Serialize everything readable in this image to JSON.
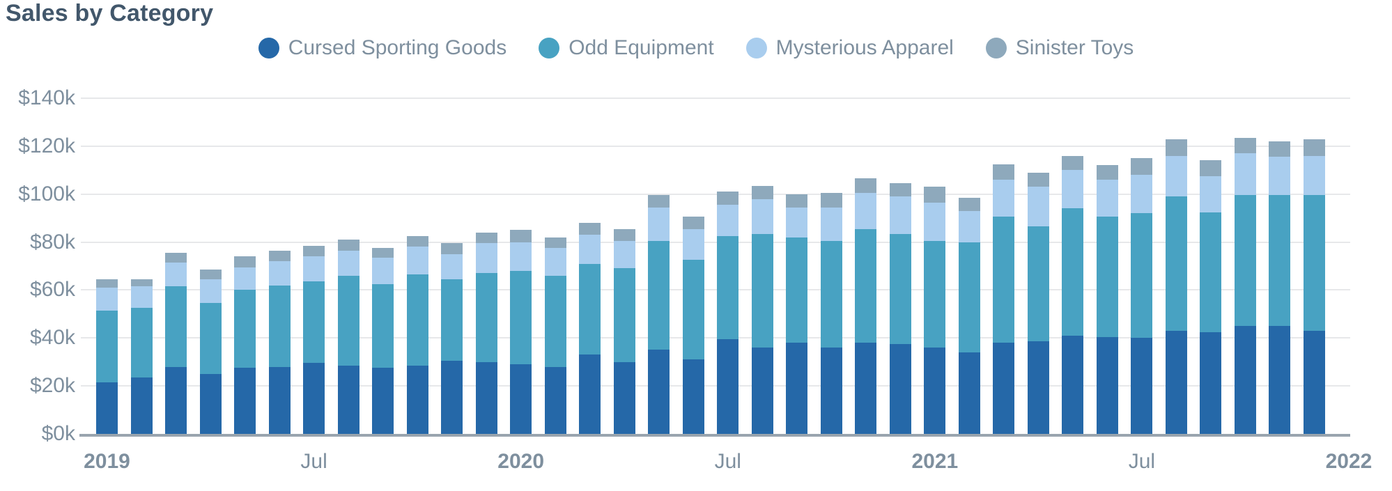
{
  "title": "Sales by Category",
  "colors": {
    "cursed_sporting_goods": "#2568A8",
    "odd_equipment": "#48A2C2",
    "mysterious_apparel": "#A9CDEE",
    "sinister_toys": "#8EA9BC",
    "title_text": "#42576B",
    "axis_text": "#7E8F9E",
    "gridline": "#E7E8EA",
    "axis_line": "#99A4AE"
  },
  "chart_data": {
    "type": "bar",
    "stacked": true,
    "title": "Sales by Category",
    "value_unit": "USD thousands",
    "grid": true,
    "legend_position": "top-center",
    "months": [
      "Jan 2019",
      "Feb 2019",
      "Mar 2019",
      "Apr 2019",
      "May 2019",
      "Jun 2019",
      "Jul 2019",
      "Aug 2019",
      "Sep 2019",
      "Oct 2019",
      "Nov 2019",
      "Dec 2019",
      "Jan 2020",
      "Feb 2020",
      "Mar 2020",
      "Apr 2020",
      "May 2020",
      "Jun 2020",
      "Jul 2020",
      "Aug 2020",
      "Sep 2020",
      "Oct 2020",
      "Nov 2020",
      "Dec 2020",
      "Jan 2021",
      "Feb 2021",
      "Mar 2021",
      "Apr 2021",
      "May 2021",
      "Jun 2021",
      "Jul 2021",
      "Aug 2021",
      "Sep 2021",
      "Oct 2021",
      "Nov 2021",
      "Dec 2021"
    ],
    "series": [
      {
        "name": "Cursed Sporting Goods",
        "color": "#2568A8",
        "values": [
          21.5,
          23.5,
          28,
          25,
          27.5,
          28,
          29.5,
          28.5,
          27.5,
          28.5,
          30.5,
          30,
          29,
          28,
          33,
          30,
          35,
          31,
          39.5,
          36,
          38,
          36,
          38,
          37.5,
          36,
          34,
          38,
          38.5,
          41,
          40.5,
          40,
          43,
          42.5,
          45,
          45,
          43
        ]
      },
      {
        "name": "Odd Equipment",
        "color": "#48A2C2",
        "values": [
          30,
          29,
          33.5,
          29.5,
          32.5,
          34,
          34,
          37.5,
          35,
          38,
          34,
          37,
          39,
          38,
          38,
          39,
          45.5,
          41.5,
          43,
          47.5,
          44,
          44.5,
          47.5,
          46,
          44.5,
          46,
          52.5,
          48,
          53,
          50,
          52,
          56,
          50,
          54.5,
          54.5,
          56.5
        ]
      },
      {
        "name": "Mysterious Apparel",
        "color": "#A9CDEE",
        "values": [
          9.5,
          9,
          10,
          10,
          9.5,
          10,
          10.5,
          10.5,
          11,
          11.5,
          10.5,
          12.5,
          12,
          11.5,
          12,
          11.5,
          14,
          13,
          13,
          14.5,
          12.5,
          14,
          15,
          15.5,
          16,
          13,
          15.5,
          16.5,
          16,
          15.5,
          16,
          17,
          15,
          17.5,
          16,
          16.5
        ]
      },
      {
        "name": "Sinister Toys",
        "color": "#8EA9BC",
        "values": [
          3.5,
          3,
          4,
          4,
          4.5,
          4.5,
          4.5,
          4.5,
          4,
          4.5,
          4.5,
          4.5,
          5,
          4.5,
          5,
          5,
          5,
          5,
          5.5,
          5.5,
          5.5,
          6,
          6,
          5.5,
          6.5,
          5.5,
          6.5,
          6,
          6,
          6,
          7,
          7,
          6.5,
          6.5,
          6.5,
          7
        ]
      }
    ],
    "y_axis": {
      "min": 0,
      "max": 140,
      "tick_interval": 20,
      "tick_labels": [
        "$0k",
        "$20k",
        "$40k",
        "$60k",
        "$80k",
        "$100k",
        "$120k",
        "$140k"
      ]
    },
    "x_axis": {
      "tick_labels": [
        {
          "label": "2019",
          "month_index": 0,
          "bold": true
        },
        {
          "label": "Jul",
          "month_index": 6,
          "bold": false
        },
        {
          "label": "2020",
          "month_index": 12,
          "bold": true
        },
        {
          "label": "Jul",
          "month_index": 18,
          "bold": false
        },
        {
          "label": "2021",
          "month_index": 24,
          "bold": true
        },
        {
          "label": "Jul",
          "month_index": 30,
          "bold": false
        },
        {
          "label": "2022",
          "month_index": 36,
          "bold": true
        }
      ]
    }
  }
}
